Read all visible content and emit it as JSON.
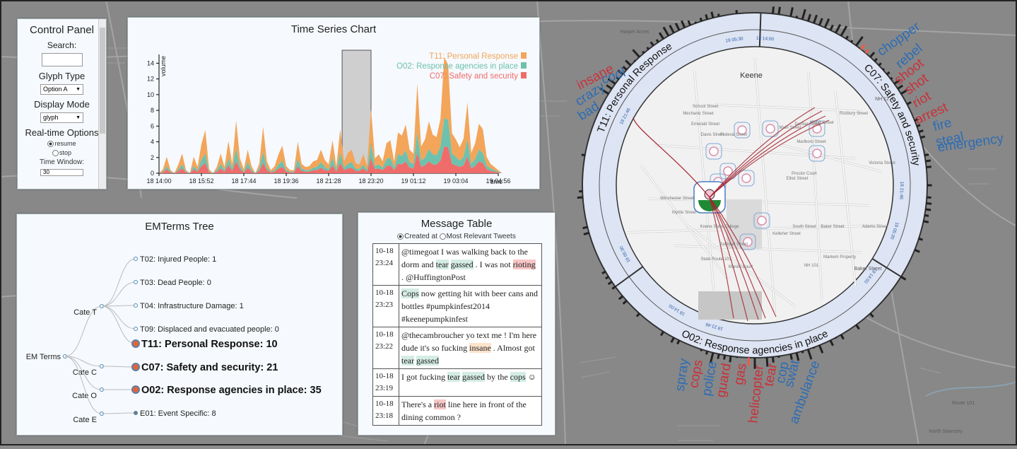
{
  "control_panel": {
    "title": "Control Panel",
    "search_label": "Search:",
    "glyph_label": "Glyph Type",
    "glyph_value": "Option A",
    "display_label": "Display Mode",
    "display_value": "glyph",
    "realtime_label": "Real-time Options",
    "resume_label": "resume",
    "stop_label": "stop",
    "window_label": "Time Window:",
    "window_value": "30"
  },
  "time_series": {
    "title": "Time Series Chart",
    "ylabel": "volume",
    "xlabel": "time",
    "legend": [
      {
        "name": "T11: Personal Response",
        "color": "#f3a55a"
      },
      {
        "name": "O02: Response agencies in place",
        "color": "#6ec1ad"
      },
      {
        "name": "C07: Safety and security",
        "color": "#ef6c6a"
      }
    ]
  },
  "chart_data": {
    "type": "area",
    "title": "Time Series Chart",
    "xlabel": "time",
    "ylabel": "volume",
    "ylim": [
      0,
      15
    ],
    "y_ticks": [
      0,
      2,
      4,
      6,
      8,
      10,
      12,
      14
    ],
    "x_ticks": [
      "18 14:00",
      "18 15:52",
      "18 17:44",
      "18 19:36",
      "18 21:28",
      "18 23:20",
      "19 01:12",
      "19 03:04",
      "19 04:56"
    ],
    "series": [
      {
        "name": "T11: Personal Response",
        "color": "#f3a55a",
        "x": [
          0.0,
          0.1,
          0.2,
          0.3,
          0.4,
          0.5,
          0.6,
          0.7,
          0.8,
          0.9,
          1.0,
          1.1,
          1.2,
          1.3,
          1.4,
          1.5,
          1.6,
          1.7,
          1.8,
          1.9,
          2.0,
          2.1,
          2.2,
          2.3,
          2.4,
          2.5,
          2.6,
          2.7,
          2.8,
          2.9,
          3.0,
          3.1,
          3.2,
          3.3,
          3.4,
          3.5,
          3.6,
          3.7,
          3.8,
          3.9,
          4.0,
          4.1,
          4.2,
          4.3,
          4.4,
          4.5,
          4.6,
          4.7,
          4.8,
          4.9,
          5.0,
          5.1,
          5.2,
          5.3,
          5.4,
          5.5,
          5.6,
          5.7,
          5.8,
          5.9,
          6.0,
          6.1,
          6.2,
          6.3,
          6.4,
          6.5,
          6.6,
          6.7,
          6.8,
          6.9,
          7.0,
          7.1,
          7.2,
          7.3,
          7.4,
          7.5,
          7.6,
          7.7,
          7.8,
          7.9,
          8.0,
          8.1,
          8.2,
          8.3,
          8.4,
          8.5,
          8.6,
          8.7,
          8.8,
          8.9,
          9.0,
          9.1,
          9.2,
          9.3,
          9.4,
          9.5,
          9.6,
          9.7
        ],
        "y": [
          0,
          0.3,
          1.2,
          0.2,
          0,
          0.6,
          1.4,
          0.2,
          0,
          1.2,
          0.4,
          2.0,
          3.0,
          0.3,
          0,
          0.4,
          1.3,
          0.4,
          2.2,
          0.6,
          3.6,
          1.0,
          0.3,
          1.6,
          0.5,
          0,
          0.6,
          3.2,
          0.8,
          0.2,
          0.5,
          1.3,
          1.9,
          0.5,
          0.2,
          0.2,
          2.2,
          0.6,
          0.4,
          0.5,
          0.8,
          0.9,
          1.6,
          0.9,
          0.6,
          2.2,
          0.5,
          3.0,
          0.8,
          1.4,
          1.6,
          0.7,
          0.6,
          1.3,
          0.5,
          4.4,
          1.0,
          1.3,
          0.8,
          2.0,
          2.2,
          0.8,
          2.8,
          2.6,
          3.3,
          1.6,
          1.3,
          6.2,
          1.8,
          2.3,
          3.5,
          2.5,
          2.3,
          3.5,
          7.8,
          7.0,
          2.6,
          2.2,
          1.7,
          2.3,
          4.7,
          1.4,
          2.0,
          3.3,
          3.0,
          1.1,
          0.6,
          0.4,
          0.2,
          0,
          0,
          0,
          0,
          0,
          0,
          0,
          0,
          0
        ]
      },
      {
        "name": "O02: Response agencies in place",
        "color": "#6ec1ad",
        "x": [
          0.0,
          0.1,
          0.2,
          0.3,
          0.4,
          0.5,
          0.6,
          0.7,
          0.8,
          0.9,
          1.0,
          1.1,
          1.2,
          1.3,
          1.4,
          1.5,
          1.6,
          1.7,
          1.8,
          1.9,
          2.0,
          2.1,
          2.2,
          2.3,
          2.4,
          2.5,
          2.6,
          2.7,
          2.8,
          2.9,
          3.0,
          3.1,
          3.2,
          3.3,
          3.4,
          3.5,
          3.6,
          3.7,
          3.8,
          3.9,
          4.0,
          4.1,
          4.2,
          4.3,
          4.4,
          4.5,
          4.6,
          4.7,
          4.8,
          4.9,
          5.0,
          5.1,
          5.2,
          5.3,
          5.4,
          5.5,
          5.6,
          5.7,
          5.8,
          5.9,
          6.0,
          6.1,
          6.2,
          6.3,
          6.4,
          6.5,
          6.6,
          6.7,
          6.8,
          6.9,
          7.0,
          7.1,
          7.2,
          7.3,
          7.4,
          7.5,
          7.6,
          7.7,
          7.8,
          7.9,
          8.0,
          8.1,
          8.2,
          8.3,
          8.4,
          8.5,
          8.6,
          8.7,
          8.8,
          8.9,
          9.0,
          9.1,
          9.2,
          9.3,
          9.4,
          9.5,
          9.6,
          9.7
        ],
        "y": [
          0,
          0.1,
          0.4,
          0.1,
          0,
          0.2,
          0.5,
          0.1,
          0,
          0.4,
          0.2,
          0.8,
          1.2,
          0.1,
          0,
          0.2,
          0.6,
          0.2,
          0.9,
          0.3,
          1.6,
          0.4,
          0.1,
          0.7,
          0.2,
          0,
          0.3,
          1.4,
          0.3,
          0.1,
          0.2,
          0.5,
          0.8,
          0.2,
          0.1,
          0.1,
          0.9,
          0.3,
          0.2,
          0.2,
          0.3,
          0.4,
          0.7,
          0.4,
          0.2,
          1.0,
          0.2,
          1.3,
          0.3,
          0.6,
          0.7,
          0.3,
          0.2,
          0.5,
          0.2,
          1.9,
          0.4,
          0.5,
          0.3,
          0.9,
          1.0,
          0.3,
          1.2,
          1.1,
          1.4,
          0.7,
          0.6,
          2.6,
          0.8,
          1.0,
          1.6,
          1.3,
          1.2,
          1.8,
          3.6,
          3.5,
          1.3,
          1.1,
          0.8,
          1.1,
          2.2,
          0.6,
          0.9,
          1.5,
          1.3,
          0.5,
          0.3,
          0.2,
          0.1,
          0,
          0,
          0,
          0,
          0,
          0,
          0,
          0,
          0
        ]
      },
      {
        "name": "C07: Safety and security",
        "color": "#ef6c6a",
        "x": [
          0.0,
          0.1,
          0.2,
          0.3,
          0.4,
          0.5,
          0.6,
          0.7,
          0.8,
          0.9,
          1.0,
          1.1,
          1.2,
          1.3,
          1.4,
          1.5,
          1.6,
          1.7,
          1.8,
          1.9,
          2.0,
          2.1,
          2.2,
          2.3,
          2.4,
          2.5,
          2.6,
          2.7,
          2.8,
          2.9,
          3.0,
          3.1,
          3.2,
          3.3,
          3.4,
          3.5,
          3.6,
          3.7,
          3.8,
          3.9,
          4.0,
          4.1,
          4.2,
          4.3,
          4.4,
          4.5,
          4.6,
          4.7,
          4.8,
          4.9,
          5.0,
          5.1,
          5.2,
          5.3,
          5.4,
          5.5,
          5.6,
          5.7,
          5.8,
          5.9,
          6.0,
          6.1,
          6.2,
          6.3,
          6.4,
          6.5,
          6.6,
          6.7,
          6.8,
          6.9,
          7.0,
          7.1,
          7.2,
          7.3,
          7.4,
          7.5,
          7.6,
          7.7,
          7.8,
          7.9,
          8.0,
          8.1,
          8.2,
          8.3,
          8.4,
          8.5,
          8.6,
          8.7,
          8.8,
          8.9,
          9.0,
          9.1,
          9.2,
          9.3,
          9.4,
          9.5,
          9.6,
          9.7
        ],
        "y": [
          0,
          0.1,
          0.5,
          0.1,
          0,
          0.3,
          0.6,
          0.1,
          0,
          0.5,
          0.2,
          0.9,
          1.3,
          0.1,
          0,
          0.2,
          0.6,
          0.2,
          1.0,
          0.3,
          1.5,
          0.5,
          0.1,
          0.7,
          0.2,
          0,
          0.3,
          1.3,
          0.4,
          0.1,
          0.2,
          0.6,
          0.8,
          0.2,
          0.1,
          0.1,
          0.9,
          0.3,
          0.2,
          0.2,
          0.4,
          0.4,
          0.7,
          0.4,
          0.3,
          1.0,
          0.2,
          1.3,
          0.4,
          0.6,
          0.7,
          0.3,
          0.3,
          0.6,
          0.2,
          1.9,
          0.5,
          0.6,
          0.4,
          0.9,
          1.0,
          0.4,
          1.2,
          1.1,
          1.5,
          0.7,
          0.6,
          2.6,
          0.8,
          1.0,
          1.5,
          1.1,
          1.1,
          1.6,
          3.4,
          3.3,
          1.2,
          1.0,
          0.8,
          1.0,
          2.1,
          0.6,
          0.9,
          1.5,
          1.3,
          0.5,
          0.3,
          0.2,
          0.1,
          0,
          0,
          0,
          0,
          0,
          0,
          0,
          0,
          0
        ]
      }
    ],
    "brush_range": [
      "18 22:37",
      "18 23:46"
    ],
    "grid": false,
    "legend_position": "top-right"
  },
  "tree": {
    "title": "EMTerms Tree",
    "root": "EM Terms",
    "categories": [
      {
        "label": "Cate T",
        "children": [
          {
            "label": "T02: Injured People: 1",
            "big": false
          },
          {
            "label": "T03: Dead People: 0",
            "big": false
          },
          {
            "label": "T04: Infrastructure Damage: 1",
            "big": false
          },
          {
            "label": "T09: Displaced and evacuated people: 0",
            "big": false
          },
          {
            "label": "T11: Personal Response: 10",
            "big": true
          }
        ]
      },
      {
        "label": "Cate C",
        "children": [
          {
            "label": "C07: Safety and security: 21",
            "big": true
          }
        ]
      },
      {
        "label": "Cate O",
        "children": [
          {
            "label": "O02: Response agencies in place: 35",
            "big": true
          }
        ]
      },
      {
        "label": "Cate E",
        "children": [
          {
            "label": "E01: Event Specific: 8",
            "big": false
          }
        ]
      }
    ]
  },
  "message_table": {
    "title": "Message Table",
    "option_created": "Created at",
    "option_relevant": "Most Relevant Tweets",
    "rows": [
      {
        "date": "10-18",
        "time": "23:24",
        "parts": [
          {
            "t": "@timegoat I was walking back to the dorm and "
          },
          {
            "t": "tear",
            "h": "g"
          },
          {
            "t": " "
          },
          {
            "t": "gassed",
            "h": "g"
          },
          {
            "t": " . I was not "
          },
          {
            "t": "rioting",
            "h": "r"
          },
          {
            "t": " . @HuffingtonPost"
          }
        ]
      },
      {
        "date": "10-18",
        "time": "23:23",
        "parts": [
          {
            "t": "Cops",
            "h": "g"
          },
          {
            "t": " now getting hit with beer cans and bottles #pumpkinfest2014 #keenepumpkinfest"
          }
        ]
      },
      {
        "date": "10-18",
        "time": "23:22",
        "parts": [
          {
            "t": "@thecambroucher yo text me ! I'm here dude it's so fucking "
          },
          {
            "t": "insane",
            "h": "o"
          },
          {
            "t": " . Almost got "
          },
          {
            "t": "tear",
            "h": "g"
          },
          {
            "t": " "
          },
          {
            "t": "gassed",
            "h": "g"
          }
        ]
      },
      {
        "date": "10-18",
        "time": "23:19",
        "parts": [
          {
            "t": "I got fucking "
          },
          {
            "t": "tear",
            "h": "g"
          },
          {
            "t": " "
          },
          {
            "t": "gassed",
            "h": "g"
          },
          {
            "t": " by the "
          },
          {
            "t": "cops",
            "h": "g"
          },
          {
            "t": " ☺"
          }
        ]
      },
      {
        "date": "10-18",
        "time": "23:18",
        "parts": [
          {
            "t": "There's a "
          },
          {
            "t": "riot",
            "h": "r"
          },
          {
            "t": " line here in front of the dining common ?"
          }
        ]
      }
    ]
  },
  "radial": {
    "sections": [
      {
        "label": "T11: Personal Response"
      },
      {
        "label": "C07: Safety and security"
      },
      {
        "label": "O02: Response agencies in place"
      }
    ],
    "time_labels": [
      "19 05:30",
      "18 14:00",
      "18 21:46",
      "19 05:30",
      "18 14:00",
      "18 21:46",
      "19 05:30",
      "18 14:00",
      "18 21:46"
    ],
    "words_left": [
      {
        "w": "cool",
        "c": "#2c6db5"
      },
      {
        "w": "insane",
        "c": "#c9313a"
      },
      {
        "w": "crazy",
        "c": "#2c6db5"
      },
      {
        "w": "bad",
        "c": "#2c6db5"
      }
    ],
    "words_right": [
      {
        "w": "chopper",
        "c": "#2c6db5"
      },
      {
        "w": "rebel",
        "c": "#2c6db5"
      },
      {
        "w": "shoot",
        "c": "#c9313a"
      },
      {
        "w": "shot",
        "c": "#c9313a"
      },
      {
        "w": "riot",
        "c": "#c9313a"
      },
      {
        "w": "arrest",
        "c": "#c9313a"
      },
      {
        "w": "fire",
        "c": "#2c6db5"
      },
      {
        "w": "steal",
        "c": "#2c6db5"
      },
      {
        "w": "emergency",
        "c": "#2c6db5"
      }
    ],
    "words_bottom": [
      {
        "w": "spray",
        "c": "#2c6db5"
      },
      {
        "w": "cops",
        "c": "#c9313a"
      },
      {
        "w": "police",
        "c": "#2c6db5"
      },
      {
        "w": "guard",
        "c": "#c9313a"
      },
      {
        "w": "gas",
        "c": "#c9313a"
      },
      {
        "w": "helicopter",
        "c": "#c9313a"
      },
      {
        "w": "tear",
        "c": "#c9313a"
      },
      {
        "w": "cop",
        "c": "#2c6db5"
      },
      {
        "w": "swat",
        "c": "#2c6db5"
      },
      {
        "w": "ambulance",
        "c": "#2c6db5"
      }
    ]
  },
  "map_labels": [
    "Keene",
    "Main Street",
    "Winchester Street",
    "Dunbar Street",
    "Water Street",
    "Emerald Street",
    "Davis Street",
    "Federal Street",
    "Proctor Court",
    "Elliot Street",
    "Baker Street",
    "State Route 101",
    "Marlboro Street",
    "NH 101",
    "Harper Acres",
    "Route 101",
    "Martell Court",
    "School Street",
    "Mechanic Street",
    "Roxbury Street",
    "Railroad Street",
    "South Street",
    "Kelleher Street",
    "Adams Street",
    "Victoria Street",
    "NH 12",
    "Keene State College",
    "Markem Property",
    "Myrtle Street",
    "Baker Street",
    "North Swanzey"
  ]
}
